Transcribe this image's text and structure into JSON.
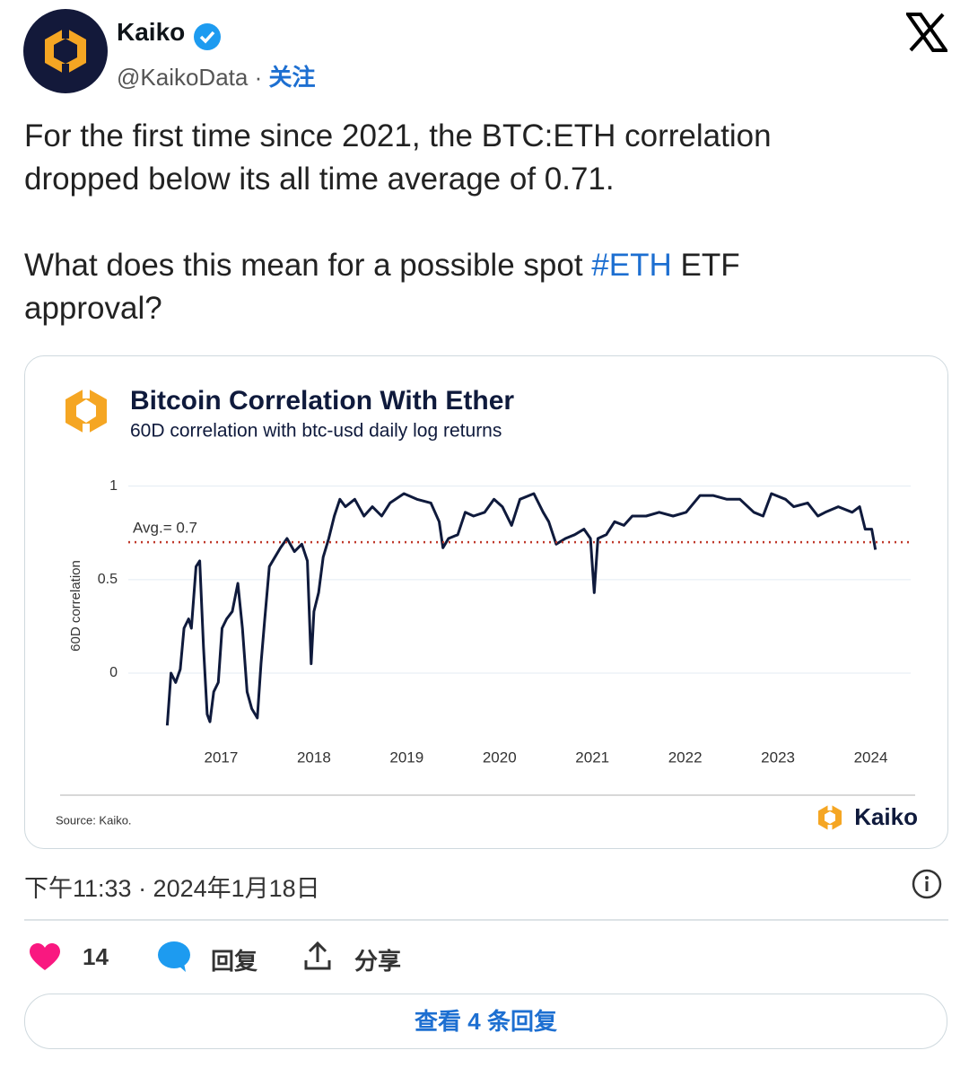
{
  "author": {
    "name": "Kaiko",
    "handle": "@KaikoData",
    "separator": " · ",
    "follow": "关注"
  },
  "tweet": {
    "paragraphs": [
      [
        "For the first time since 2021, the BTC:ETH correlation dropped below its all time average of 0.71."
      ],
      [
        "What does this mean for a possible spot ",
        "#ETH",
        " ETF approval?"
      ]
    ],
    "timestamp": "下午11:33 · 2024年1月18日"
  },
  "actions": {
    "likes": "14",
    "reply": "回复",
    "share": "分享",
    "view_replies": "查看 4 条回复"
  },
  "chart_data": {
    "type": "line",
    "title": "Bitcoin Correlation With Ether",
    "subtitle": "60D correlation with btc-usd daily log returns",
    "y_label": "60D correlation",
    "source": "Source: Kaiko.",
    "brand": "Kaiko",
    "x": [
      2016.42,
      2016.46,
      2016.51,
      2016.56,
      2016.6,
      2016.65,
      2016.68,
      2016.73,
      2016.77,
      2016.81,
      2016.85,
      2016.88,
      2016.92,
      2016.97,
      2017.01,
      2017.06,
      2017.12,
      2017.18,
      2017.23,
      2017.28,
      2017.33,
      2017.39,
      2017.43,
      2017.47,
      2017.52,
      2017.58,
      2017.64,
      2017.71,
      2017.79,
      2017.87,
      2017.93,
      2017.97,
      2018.0,
      2018.05,
      2018.1,
      2018.16,
      2018.22,
      2018.28,
      2018.34,
      2018.44,
      2018.54,
      2018.63,
      2018.73,
      2018.82,
      2018.97,
      2019.11,
      2019.26,
      2019.35,
      2019.39,
      2019.45,
      2019.55,
      2019.63,
      2019.72,
      2019.84,
      2019.94,
      2020.03,
      2020.13,
      2020.22,
      2020.37,
      2020.47,
      2020.53,
      2020.61,
      2020.71,
      2020.81,
      2020.91,
      2020.98,
      2021.02,
      2021.06,
      2021.15,
      2021.24,
      2021.34,
      2021.43,
      2021.58,
      2021.72,
      2021.87,
      2022.01,
      2022.16,
      2022.3,
      2022.45,
      2022.59,
      2022.74,
      2022.84,
      2022.93,
      2023.08,
      2023.17,
      2023.32,
      2023.43,
      2023.51,
      2023.65,
      2023.8,
      2023.88,
      2023.94,
      2024.01,
      2024.05
    ],
    "series": [
      {
        "name": "60D correlation",
        "color": "#0f1a3c",
        "values": [
          -0.28,
          0.0,
          -0.05,
          0.02,
          0.24,
          0.29,
          0.24,
          0.57,
          0.6,
          0.14,
          -0.22,
          -0.26,
          -0.1,
          -0.05,
          0.24,
          0.29,
          0.33,
          0.48,
          0.24,
          -0.1,
          -0.19,
          -0.24,
          0.05,
          0.29,
          0.57,
          0.62,
          0.67,
          0.72,
          0.65,
          0.69,
          0.6,
          0.05,
          0.33,
          0.43,
          0.62,
          0.72,
          0.84,
          0.93,
          0.89,
          0.93,
          0.84,
          0.89,
          0.84,
          0.91,
          0.96,
          0.93,
          0.91,
          0.81,
          0.67,
          0.72,
          0.74,
          0.86,
          0.84,
          0.86,
          0.93,
          0.89,
          0.79,
          0.93,
          0.96,
          0.86,
          0.81,
          0.69,
          0.72,
          0.74,
          0.77,
          0.72,
          0.43,
          0.72,
          0.74,
          0.81,
          0.79,
          0.84,
          0.84,
          0.86,
          0.84,
          0.86,
          0.95,
          0.95,
          0.93,
          0.93,
          0.86,
          0.84,
          0.96,
          0.93,
          0.89,
          0.91,
          0.84,
          0.86,
          0.89,
          0.86,
          0.89,
          0.77,
          0.77,
          0.66
        ]
      }
    ],
    "avg_line": {
      "value": 0.7,
      "label": "Avg.= 0.7",
      "color": "#c0392b"
    },
    "xlim": [
      2016.0,
      2024.43
    ],
    "xticks": [
      2017,
      2018,
      2019,
      2020,
      2021,
      2022,
      2023,
      2024
    ],
    "ylim": [
      -0.36,
      1.08
    ],
    "yticks": [
      0,
      0.5,
      1
    ],
    "grid": true
  }
}
